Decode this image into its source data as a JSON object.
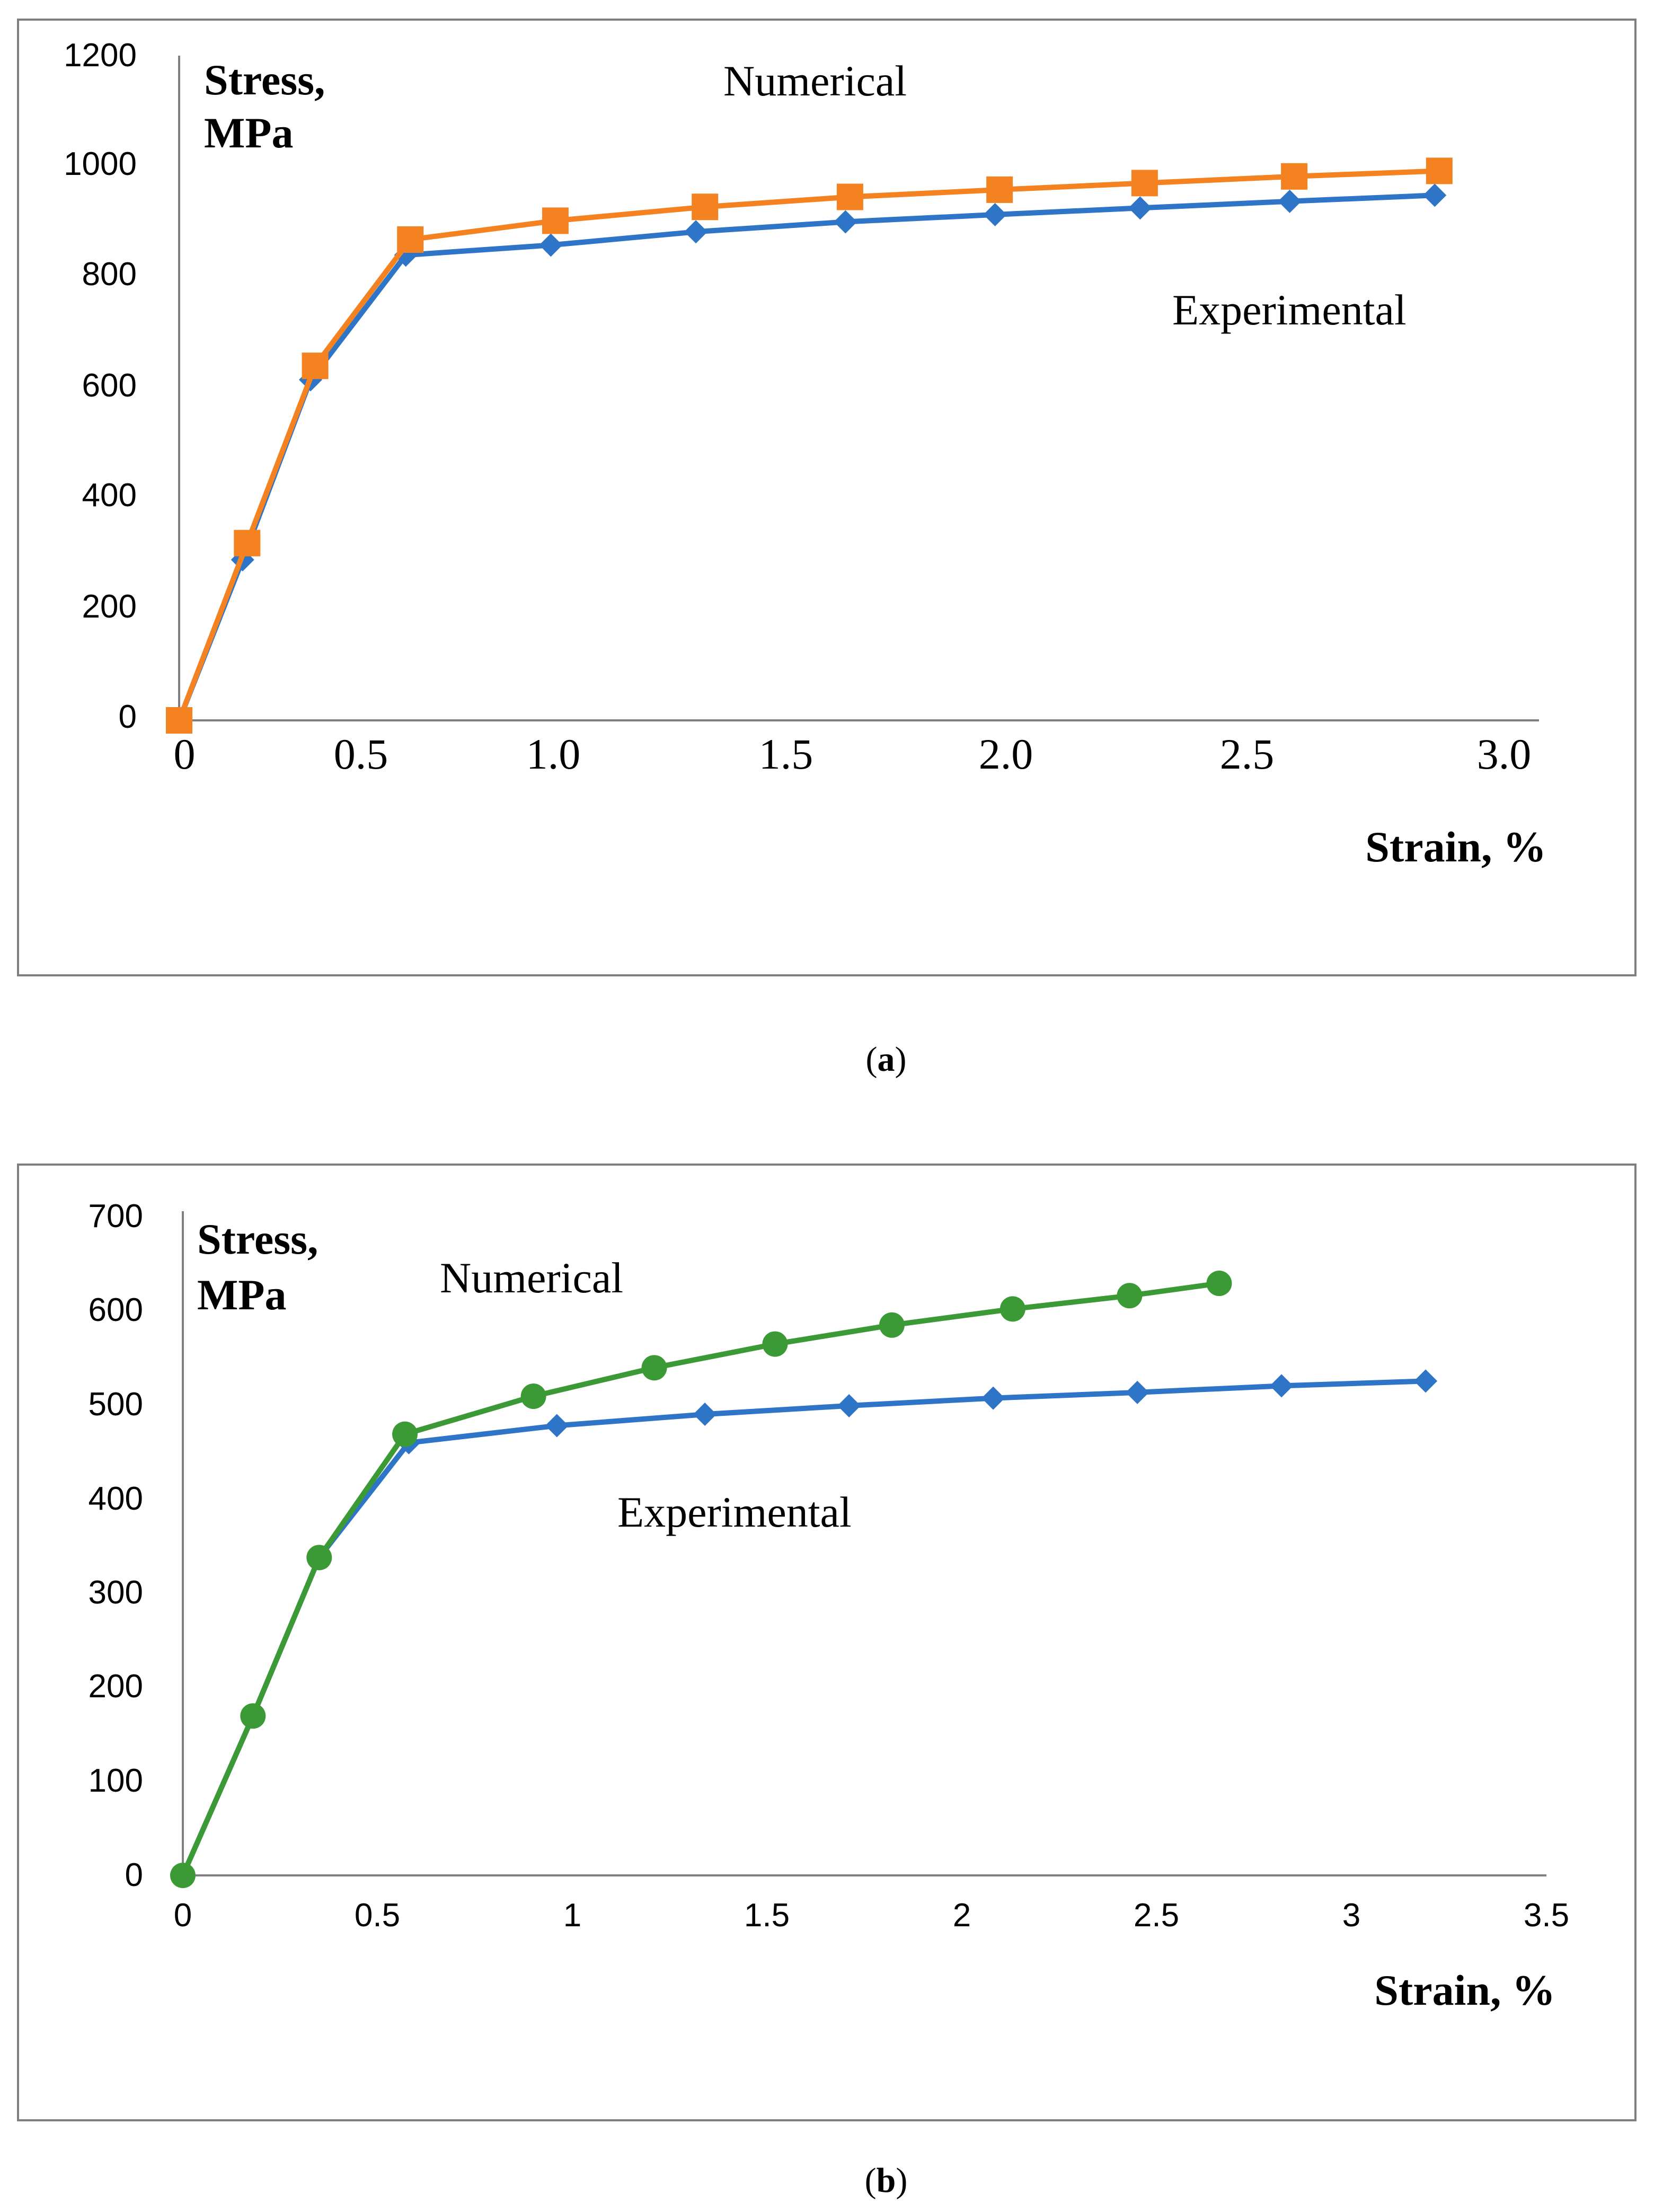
{
  "chart_data": [
    {
      "type": "line",
      "caption": "a",
      "ylabel_lines": [
        "Stress,",
        "MPa"
      ],
      "xlabel": "Strain, %",
      "xlim": [
        0,
        3.0
      ],
      "ylim": [
        0,
        1200
      ],
      "x_ticks": [
        "0",
        "0.5",
        "1.0",
        "1.5",
        "2.0",
        "2.5",
        "3.0"
      ],
      "y_ticks": [
        "0",
        "200",
        "400",
        "600",
        "800",
        "1000",
        "1200"
      ],
      "grid": false,
      "annotations": [
        "Numerical",
        "Experimental"
      ],
      "series": [
        {
          "color": "#2E75C8",
          "marker": "diamond",
          "x": [
            0,
            0.14,
            0.29,
            0.5,
            0.82,
            1.14,
            1.47,
            1.8,
            2.12,
            2.45,
            2.77
          ],
          "y": [
            0,
            290,
            615,
            840,
            858,
            882,
            900,
            913,
            925,
            937,
            948
          ]
        },
        {
          "color": "#F58220",
          "marker": "square",
          "x": [
            0,
            0.15,
            0.3,
            0.51,
            0.83,
            1.16,
            1.48,
            1.81,
            2.13,
            2.46,
            2.78
          ],
          "y": [
            0,
            320,
            640,
            868,
            902,
            927,
            945,
            958,
            970,
            982,
            992
          ]
        }
      ]
    },
    {
      "type": "line",
      "caption": "b",
      "ylabel_lines": [
        "Stress,",
        "MPa"
      ],
      "xlabel": "Strain, %",
      "xlim": [
        0,
        3.5
      ],
      "ylim": [
        0,
        700
      ],
      "x_ticks": [
        "0",
        "0.5",
        "1",
        "1.5",
        "2",
        "2.5",
        "3",
        "3.5"
      ],
      "y_ticks": [
        "0",
        "100",
        "200",
        "300",
        "400",
        "500",
        "600",
        "700"
      ],
      "grid": false,
      "annotations": [
        "Numerical",
        "Experimental"
      ],
      "series": [
        {
          "color": "#2E75C8",
          "marker": "diamond",
          "x": [
            0,
            0.18,
            0.35,
            0.58,
            0.96,
            1.34,
            1.71,
            2.08,
            2.45,
            2.82,
            3.19
          ],
          "y": [
            0,
            168,
            335,
            456,
            474,
            486,
            495,
            503,
            509,
            516,
            521
          ]
        },
        {
          "color": "#3C9A36",
          "marker": "circle",
          "x": [
            0,
            0.18,
            0.35,
            0.57,
            0.9,
            1.21,
            1.52,
            1.82,
            2.13,
            2.43,
            2.66
          ],
          "y": [
            0,
            168,
            335,
            465,
            505,
            535,
            560,
            580,
            597,
            611,
            624
          ]
        }
      ]
    }
  ]
}
